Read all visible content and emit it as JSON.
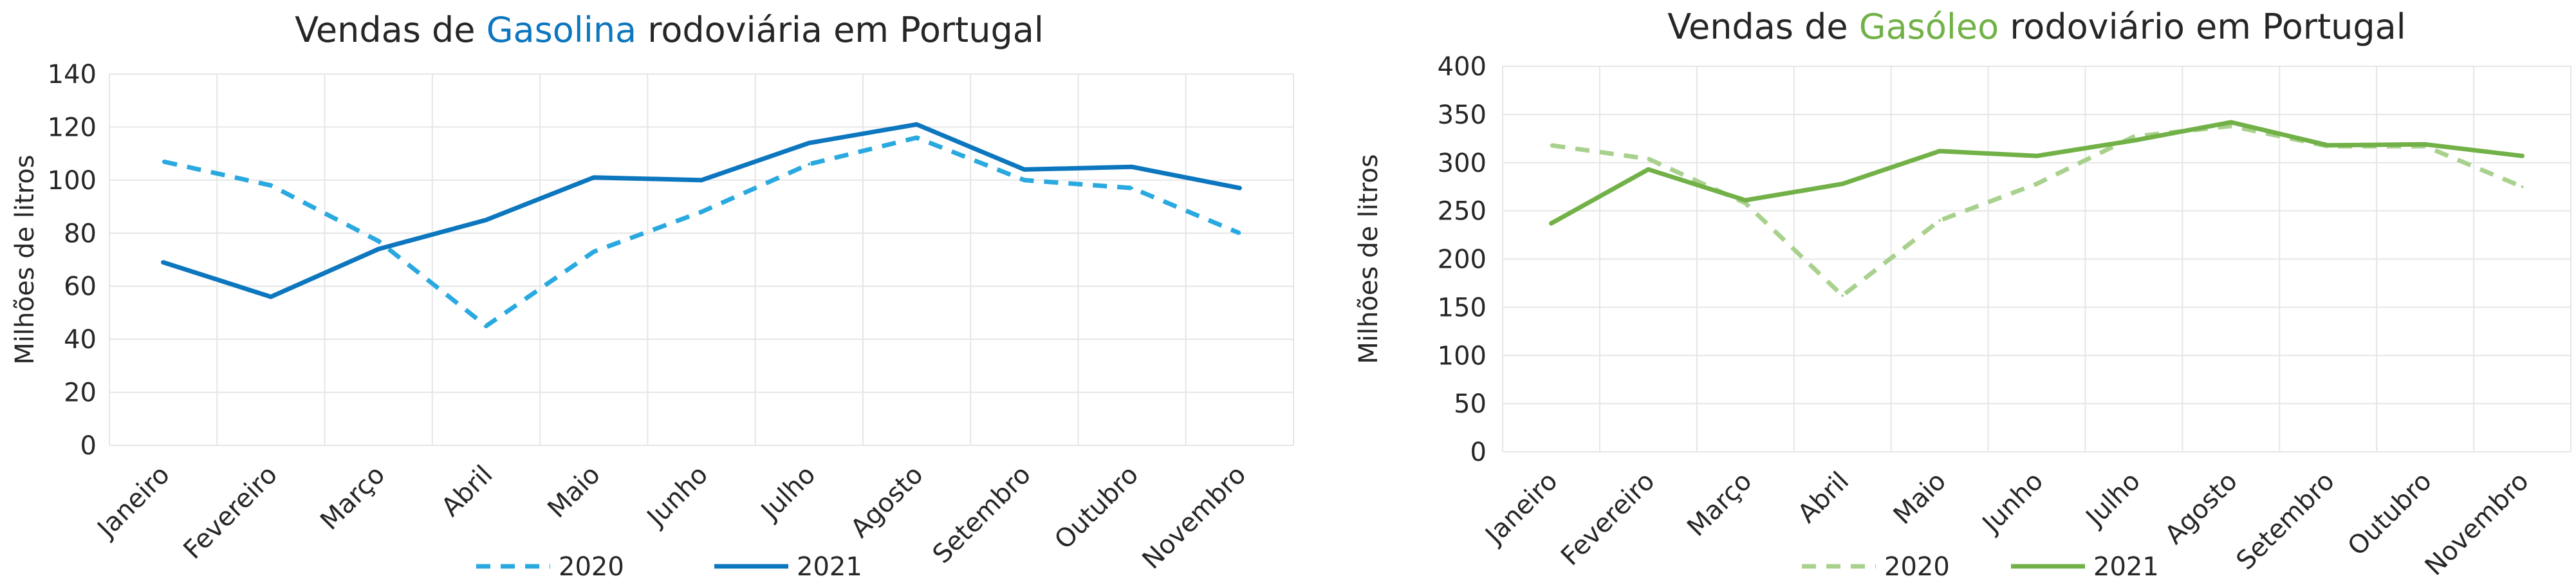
{
  "chart_data": [
    {
      "type": "line",
      "title_parts": [
        "Vendas de ",
        "Gasolina",
        " rodoviária em Portugal"
      ],
      "title_highlight_color": "#0c76be",
      "ylabel": "Milhões de litros",
      "xlabel": "",
      "ylim": [
        0,
        140
      ],
      "yticks": [
        "0",
        "20",
        "40",
        "60",
        "80",
        "100",
        "120",
        "140"
      ],
      "grid": true,
      "legend_position": "bottom",
      "categories": [
        "Janeiro",
        "Fevereiro",
        "Março",
        "Abril",
        "Maio",
        "Junho",
        "Julho",
        "Agosto",
        "Setembro",
        "Outubro",
        "Novembro"
      ],
      "series": [
        {
          "name": "2020",
          "style": "dashed",
          "color": "#29a9e0",
          "values": [
            107,
            98,
            77,
            45,
            73,
            88,
            106,
            116,
            100,
            97,
            80
          ]
        },
        {
          "name": "2021",
          "style": "solid",
          "color": "#0c76be",
          "values": [
            69,
            56,
            74,
            85,
            101,
            100,
            114,
            121,
            104,
            105,
            97
          ]
        }
      ]
    },
    {
      "type": "line",
      "title_parts": [
        "Vendas de ",
        "Gasóleo",
        " rodoviário em Portugal"
      ],
      "title_highlight_color": "#72b147",
      "ylabel": "Milhões de litros",
      "xlabel": "",
      "ylim": [
        0,
        400
      ],
      "yticks": [
        "0",
        "50",
        "100",
        "150",
        "200",
        "250",
        "300",
        "350",
        "400"
      ],
      "grid": true,
      "legend_position": "bottom",
      "categories": [
        "Janeiro",
        "Fevereiro",
        "Março",
        "Abril",
        "Maio",
        "Junho",
        "Julho",
        "Agosto",
        "Setembro",
        "Outubro",
        "Novembro"
      ],
      "series": [
        {
          "name": "2020",
          "style": "dashed",
          "color": "#a9d18e",
          "values": [
            318,
            304,
            258,
            162,
            240,
            278,
            327,
            338,
            317,
            317,
            275
          ]
        },
        {
          "name": "2021",
          "style": "solid",
          "color": "#72b147",
          "values": [
            237,
            293,
            261,
            278,
            312,
            307,
            323,
            342,
            318,
            319,
            307
          ]
        }
      ]
    }
  ]
}
